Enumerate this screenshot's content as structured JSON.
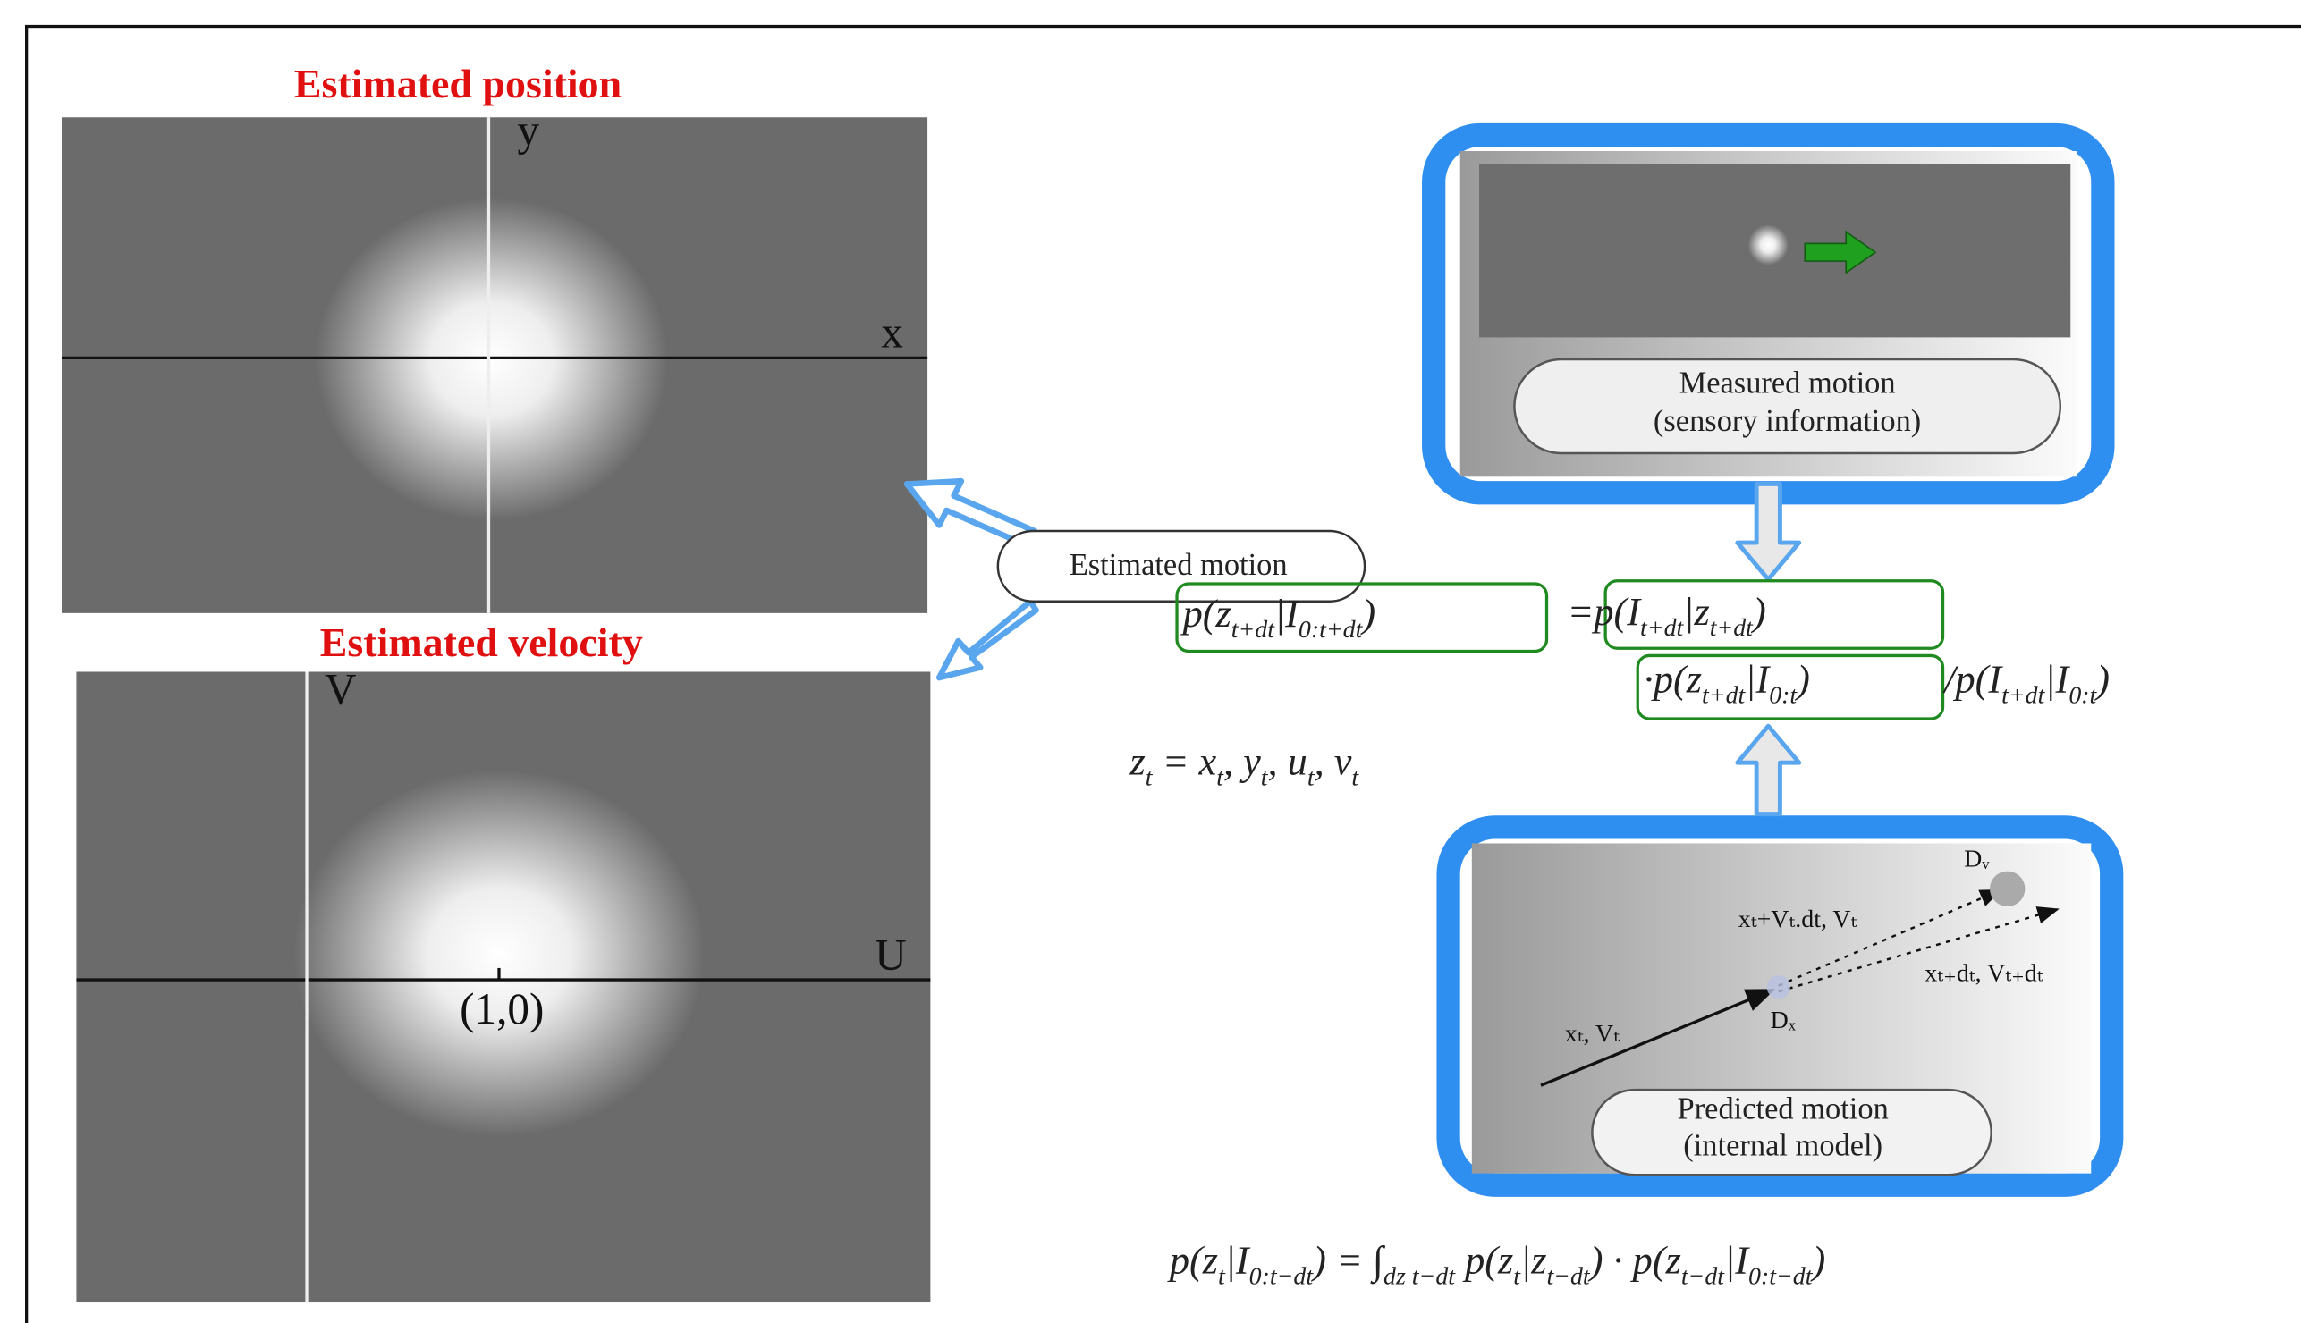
{
  "panels": {
    "position": {
      "title": "Estimated position",
      "x_label": "x",
      "y_label": "y"
    },
    "velocity": {
      "title": "Estimated velocity",
      "x_label": "U",
      "y_label": "V",
      "point_label": "(1,0)"
    }
  },
  "estimated_motion": "Estimated motion",
  "measured_box": {
    "line1": "Measured motion",
    "line2": "(sensory information)"
  },
  "predicted_box": {
    "line1": "Predicted motion",
    "line2": "(internal model)",
    "labels": {
      "start": "xₜ, Vₜ",
      "mid": "xₜ+Vₜ.dt, Vₜ",
      "next": "xₜ₊dₜ, Vₜ₊dₜ",
      "dx": "Dₓ",
      "dv": "Dᵥ"
    }
  },
  "equations": [
    [
      {
        "text": "p(z"
      },
      {
        "sub": "t+dt"
      },
      {
        "text": "|I"
      },
      {
        "sub": "0:t+dt"
      },
      {
        "text": ")"
      }
    ],
    [
      {
        "text": "=p(I"
      },
      {
        "sub": "t+dt"
      },
      {
        "text": "|z"
      },
      {
        "sub": "t+dt"
      },
      {
        "text": ")"
      }
    ],
    [
      {
        "text": "·p(z"
      },
      {
        "sub": "t+dt"
      },
      {
        "text": "|I"
      },
      {
        "sub": "0:t"
      },
      {
        "text": ")"
      }
    ],
    [
      {
        "text": "/p(I"
      },
      {
        "sub": "t+dt"
      },
      {
        "text": "|I"
      },
      {
        "sub": "0:t"
      },
      {
        "text": ")"
      }
    ],
    [
      {
        "text": "z"
      },
      {
        "sub": "t"
      },
      {
        "text": " = x"
      },
      {
        "sub": "t"
      },
      {
        "text": ", y"
      },
      {
        "sub": "t"
      },
      {
        "text": ", u"
      },
      {
        "sub": "t"
      },
      {
        "text": ", v"
      },
      {
        "sub": "t"
      }
    ],
    [
      {
        "text": "p(z"
      },
      {
        "sub": "t"
      },
      {
        "text": "|I"
      },
      {
        "sub": "0:t−dt"
      },
      {
        "text": ") = ∫"
      },
      {
        "sub": "dz t−dt"
      },
      {
        "text": " p(z"
      },
      {
        "sub": "t"
      },
      {
        "text": "|z"
      },
      {
        "sub": "t−dt"
      },
      {
        "text": ") · p(z"
      },
      {
        "sub": "t−dt"
      },
      {
        "text": "|I"
      },
      {
        "sub": "0:t−dt"
      },
      {
        "text": ")"
      }
    ]
  ]
}
